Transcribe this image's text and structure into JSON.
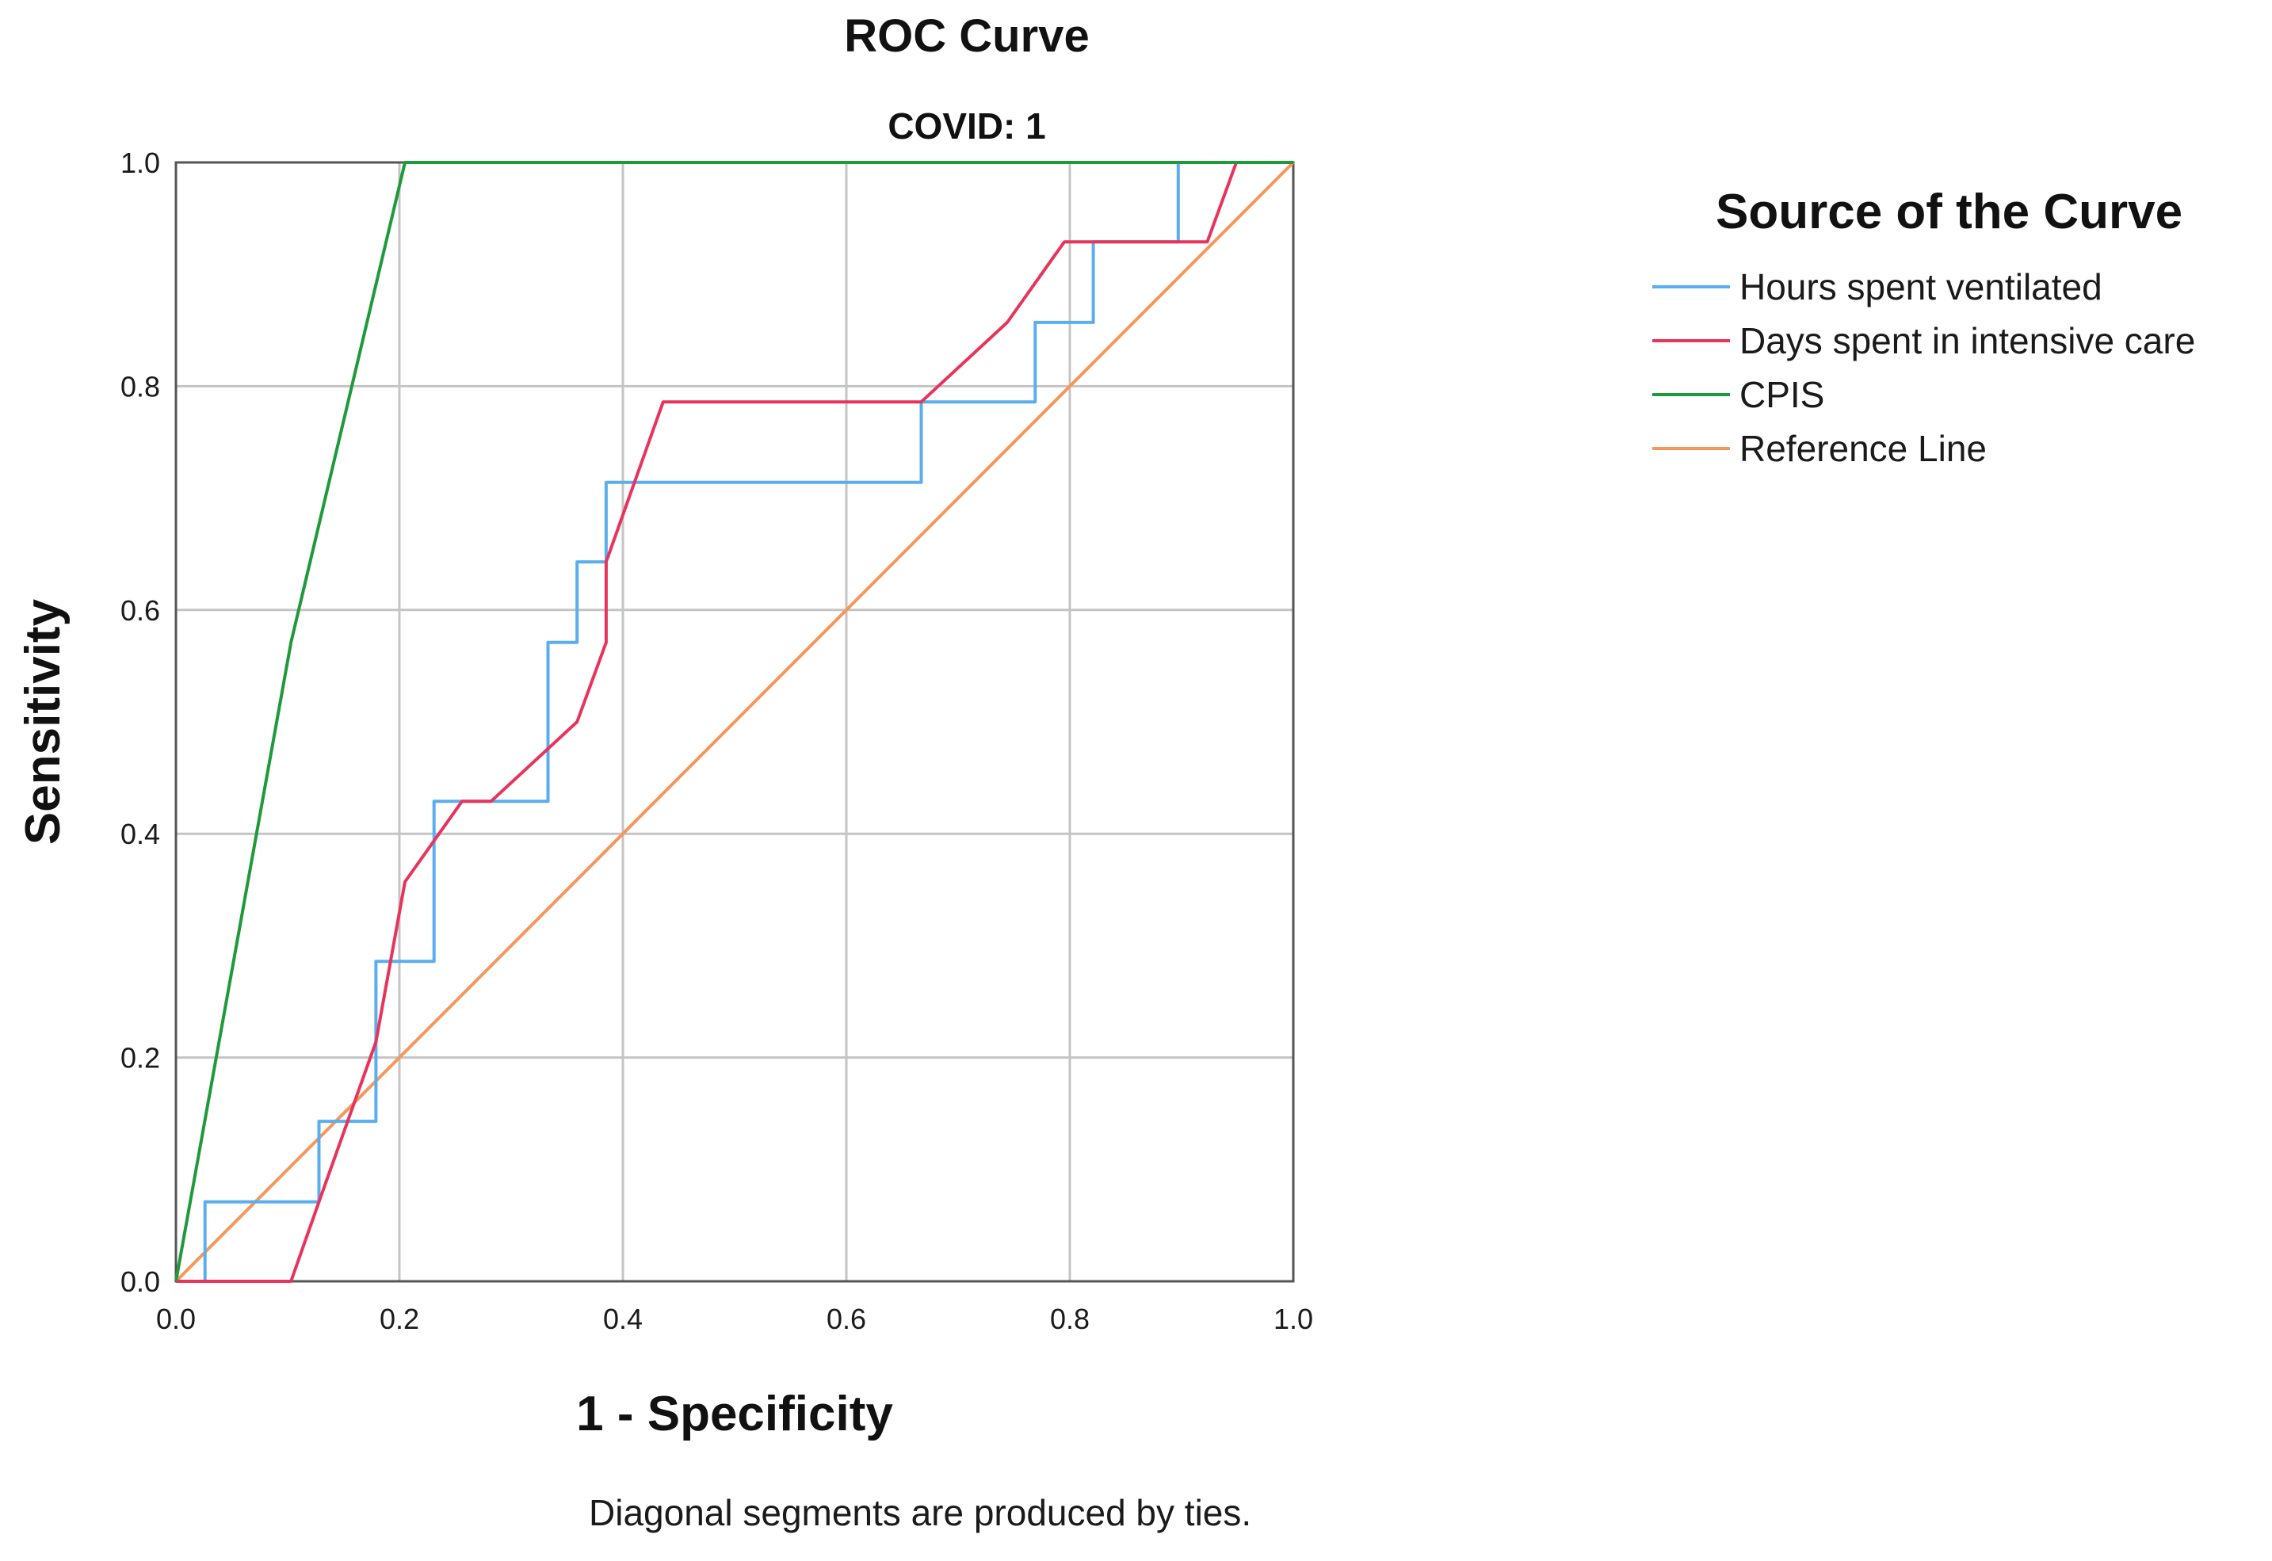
{
  "chart_data": {
    "type": "line",
    "title": "ROC Curve",
    "subtitle": "COVID: 1",
    "xlabel": "1 - Specificity",
    "ylabel": "Sensitivity",
    "xlim": [
      0,
      1
    ],
    "ylim": [
      0,
      1
    ],
    "x_ticks": [
      "0.0",
      "0.2",
      "0.4",
      "0.6",
      "0.8",
      "1.0"
    ],
    "y_ticks": [
      "0.0",
      "0.2",
      "0.4",
      "0.6",
      "0.8",
      "1.0"
    ],
    "grid": true,
    "legend_title": "Source of the Curve",
    "legend_position": "right",
    "footnote": "Diagonal segments are produced by ties.",
    "series": [
      {
        "name": "Hours spent ventilated",
        "color": "#5aaef0",
        "points": [
          [
            0,
            0
          ],
          [
            0.026,
            0
          ],
          [
            0.026,
            0.071
          ],
          [
            0.128,
            0.071
          ],
          [
            0.128,
            0.143
          ],
          [
            0.179,
            0.143
          ],
          [
            0.179,
            0.286
          ],
          [
            0.231,
            0.286
          ],
          [
            0.231,
            0.429
          ],
          [
            0.333,
            0.429
          ],
          [
            0.333,
            0.571
          ],
          [
            0.359,
            0.571
          ],
          [
            0.359,
            0.643
          ],
          [
            0.385,
            0.643
          ],
          [
            0.385,
            0.714
          ],
          [
            0.667,
            0.714
          ],
          [
            0.667,
            0.786
          ],
          [
            0.769,
            0.786
          ],
          [
            0.769,
            0.857
          ],
          [
            0.821,
            0.857
          ],
          [
            0.821,
            0.929
          ],
          [
            0.897,
            0.929
          ],
          [
            0.897,
            1.0
          ],
          [
            1.0,
            1.0
          ]
        ]
      },
      {
        "name": "Days spent in intensive care",
        "color": "#e8345a",
        "points": [
          [
            0,
            0
          ],
          [
            0.103,
            0
          ],
          [
            0.128,
            0.071
          ],
          [
            0.179,
            0.214
          ],
          [
            0.205,
            0.357
          ],
          [
            0.256,
            0.429
          ],
          [
            0.282,
            0.429
          ],
          [
            0.333,
            0.476
          ],
          [
            0.359,
            0.5
          ],
          [
            0.385,
            0.571
          ],
          [
            0.385,
            0.643
          ],
          [
            0.436,
            0.786
          ],
          [
            0.667,
            0.786
          ],
          [
            0.744,
            0.857
          ],
          [
            0.795,
            0.929
          ],
          [
            0.923,
            0.929
          ],
          [
            0.949,
            1.0
          ],
          [
            1.0,
            1.0
          ]
        ]
      },
      {
        "name": "CPIS",
        "color": "#1f9a3a",
        "points": [
          [
            0,
            0
          ],
          [
            0.103,
            0.571
          ],
          [
            0.205,
            1.0
          ],
          [
            1.0,
            1.0
          ]
        ]
      },
      {
        "name": "Reference Line",
        "color": "#f5975a",
        "points": [
          [
            0,
            0
          ],
          [
            1.0,
            1.0
          ]
        ]
      }
    ]
  }
}
